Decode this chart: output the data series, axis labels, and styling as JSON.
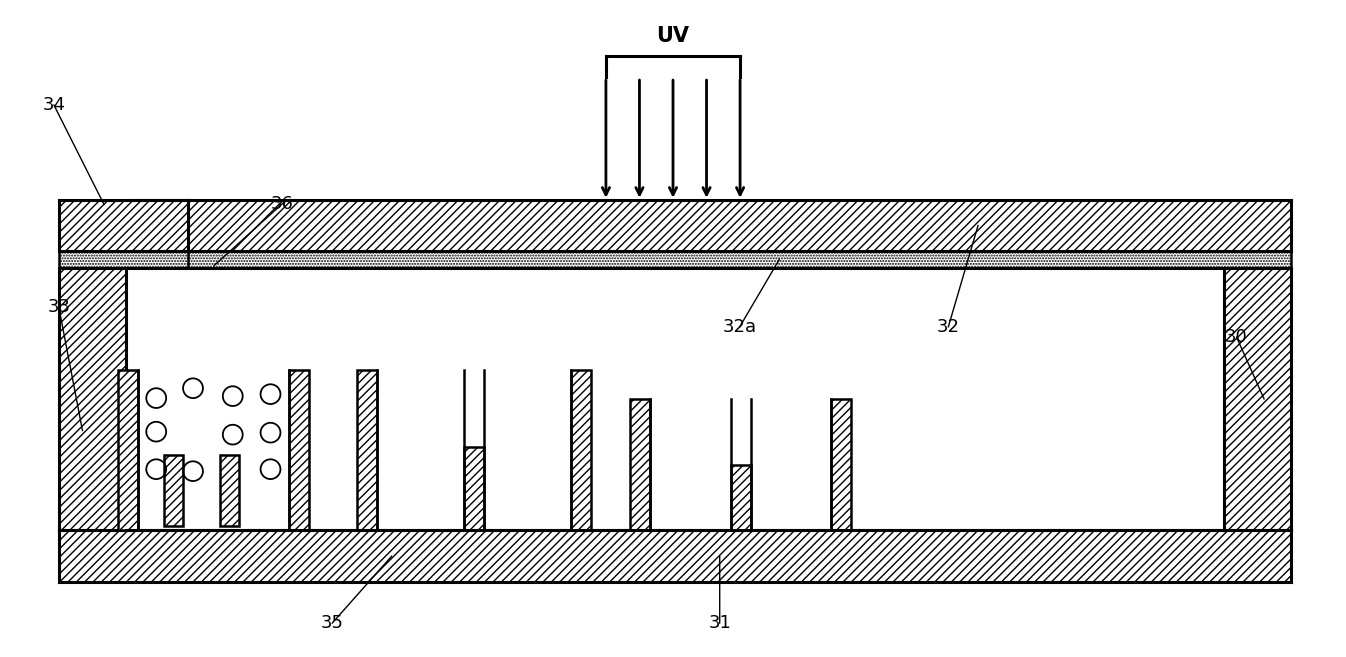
{
  "bg_color": "#ffffff",
  "line_color": "#000000",
  "figsize": [
    13.46,
    6.57
  ],
  "dpi": 100,
  "label_fontsize": 13,
  "uv_fontsize": 15,
  "struct_lw": 1.8
}
